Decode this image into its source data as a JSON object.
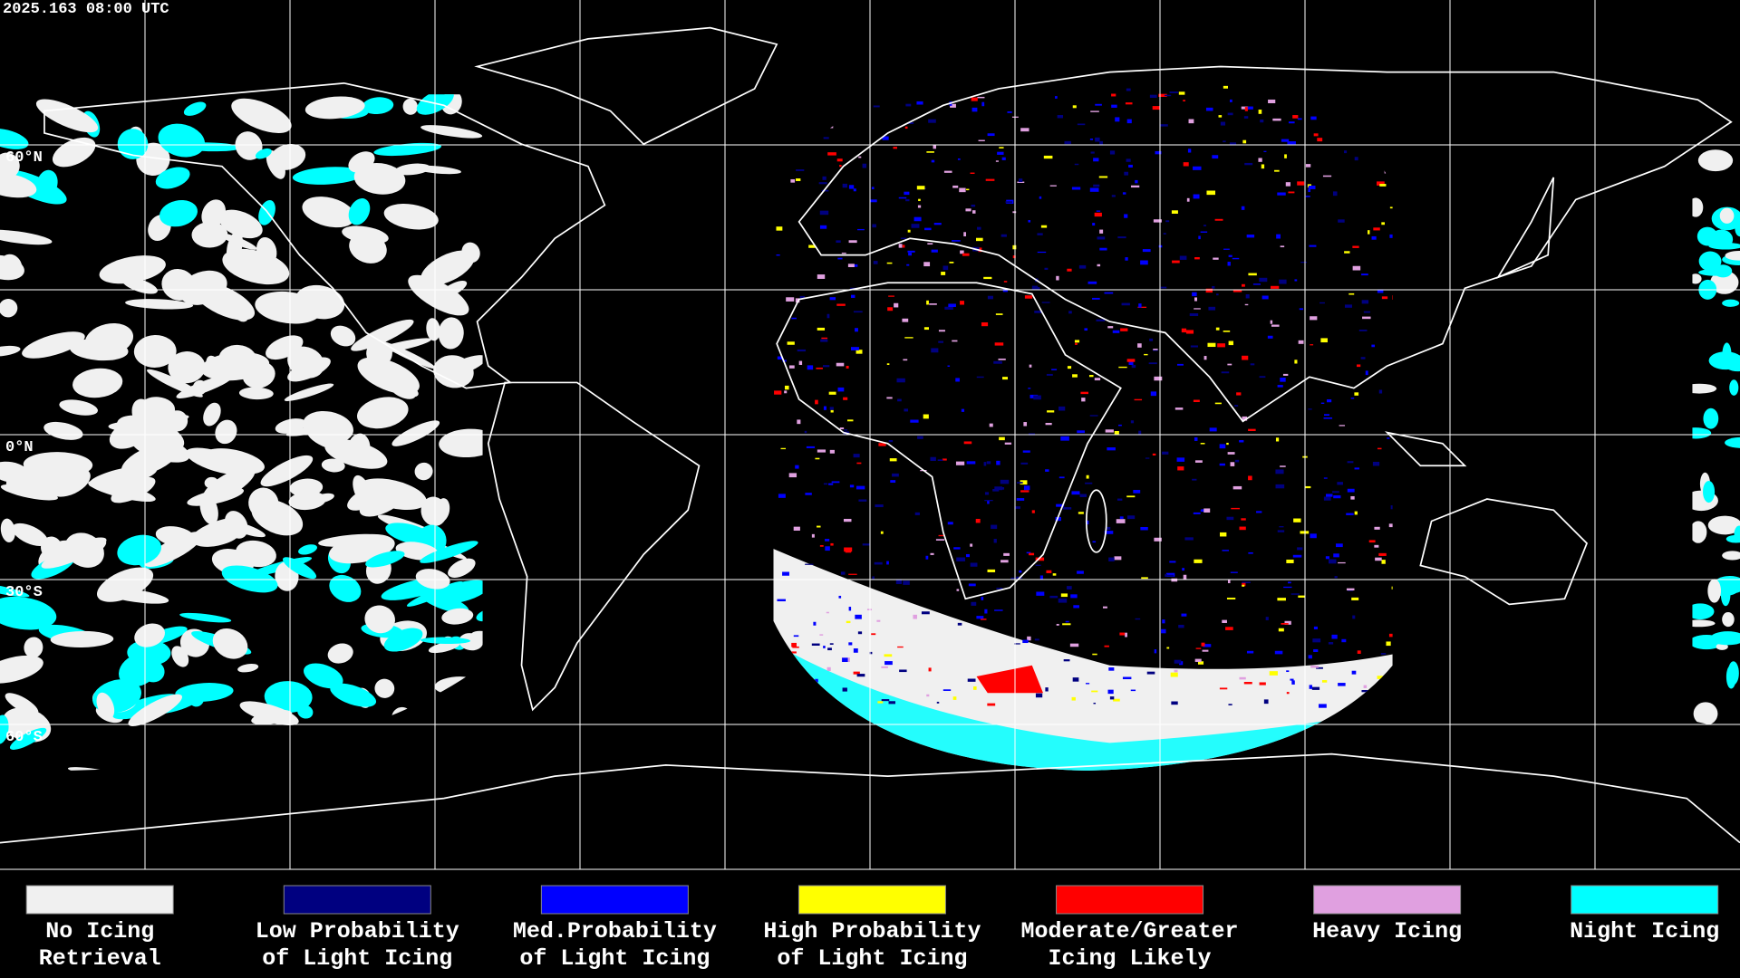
{
  "timestamp": "2025.163 08:00 UTC",
  "latitude_labels": [
    "60°N",
    "0°N",
    "30°S",
    "60°S"
  ],
  "legend": [
    {
      "label_lines": [
        "No Icing",
        "Retrieval"
      ],
      "color": "#f0f0f0"
    },
    {
      "label_lines": [
        "Low Probability",
        "of Light Icing"
      ],
      "color": "#000080"
    },
    {
      "label_lines": [
        "Med.Probability",
        "of Light Icing"
      ],
      "color": "#0000ff"
    },
    {
      "label_lines": [
        "High Probability",
        "of Light Icing"
      ],
      "color": "#ffff00"
    },
    {
      "label_lines": [
        "Moderate/Greater",
        "Icing Likely"
      ],
      "color": "#ff0000"
    },
    {
      "label_lines": [
        "Heavy Icing"
      ],
      "color": "#e0a0e0"
    },
    {
      "label_lines": [
        "Night Icing"
      ],
      "color": "#00ffff"
    }
  ]
}
